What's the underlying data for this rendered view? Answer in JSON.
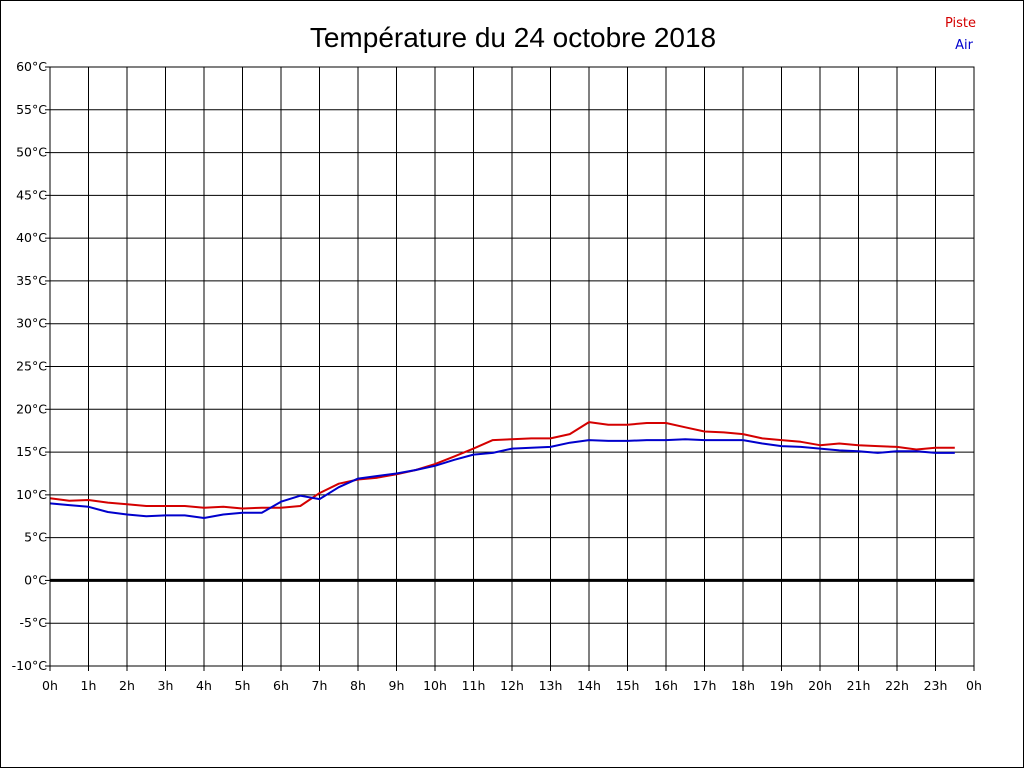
{
  "chart_data": {
    "type": "line",
    "title": "Température du 24 octobre 2018",
    "xlabel": "",
    "ylabel": "",
    "x_ticks": [
      "0h",
      "1h",
      "2h",
      "3h",
      "4h",
      "5h",
      "6h",
      "7h",
      "8h",
      "9h",
      "10h",
      "11h",
      "12h",
      "13h",
      "14h",
      "15h",
      "16h",
      "17h",
      "18h",
      "19h",
      "20h",
      "21h",
      "22h",
      "23h",
      "0h"
    ],
    "y_ticks": [
      "-10°C",
      "-5°C",
      "0°C",
      "5°C",
      "10°C",
      "15°C",
      "20°C",
      "25°C",
      "30°C",
      "35°C",
      "40°C",
      "45°C",
      "50°C",
      "55°C",
      "60°C"
    ],
    "xlim": [
      0,
      24
    ],
    "ylim": [
      -10,
      60
    ],
    "grid": true,
    "legend_position": "top-right",
    "series": [
      {
        "name": "Piste",
        "color": "#d40000",
        "x": [
          0,
          0.5,
          1,
          1.5,
          2,
          2.5,
          3,
          3.5,
          4,
          4.5,
          5,
          5.5,
          6,
          6.5,
          7,
          7.5,
          8,
          8.5,
          9,
          9.5,
          10,
          10.5,
          11,
          11.5,
          12,
          12.5,
          13,
          13.5,
          14,
          14.5,
          15,
          15.5,
          16,
          16.5,
          17,
          17.5,
          18,
          18.5,
          19,
          19.5,
          20,
          20.5,
          21,
          21.5,
          22,
          22.5,
          23,
          23.5
        ],
        "values": [
          9.6,
          9.3,
          9.4,
          9.1,
          8.9,
          8.7,
          8.7,
          8.7,
          8.5,
          8.6,
          8.4,
          8.5,
          8.5,
          8.7,
          10.2,
          11.3,
          11.8,
          12.0,
          12.4,
          12.9,
          13.6,
          14.5,
          15.4,
          16.4,
          16.5,
          16.6,
          16.6,
          17.1,
          18.5,
          18.2,
          18.2,
          18.4,
          18.4,
          17.9,
          17.4,
          17.3,
          17.1,
          16.6,
          16.4,
          16.2,
          15.8,
          16.0,
          15.8,
          15.7,
          15.6,
          15.3,
          15.5,
          15.5
        ]
      },
      {
        "name": "Air",
        "color": "#0000cc",
        "x": [
          0,
          0.5,
          1,
          1.5,
          2,
          2.5,
          3,
          3.5,
          4,
          4.5,
          5,
          5.5,
          6,
          6.5,
          7,
          7.5,
          8,
          8.5,
          9,
          9.5,
          10,
          10.5,
          11,
          11.5,
          12,
          12.5,
          13,
          13.5,
          14,
          14.5,
          15,
          15.5,
          16,
          16.5,
          17,
          17.5,
          18,
          18.5,
          19,
          19.5,
          20,
          20.5,
          21,
          21.5,
          22,
          22.5,
          23,
          23.5
        ],
        "values": [
          9.0,
          8.8,
          8.6,
          8.0,
          7.7,
          7.5,
          7.6,
          7.6,
          7.3,
          7.7,
          7.9,
          7.9,
          9.2,
          9.9,
          9.5,
          10.9,
          11.9,
          12.2,
          12.5,
          12.9,
          13.4,
          14.1,
          14.7,
          14.9,
          15.4,
          15.5,
          15.6,
          16.1,
          16.4,
          16.3,
          16.3,
          16.4,
          16.4,
          16.5,
          16.4,
          16.4,
          16.4,
          16.0,
          15.7,
          15.6,
          15.4,
          15.2,
          15.1,
          14.9,
          15.1,
          15.1,
          14.9,
          14.9
        ]
      }
    ],
    "baseline": {
      "y": 0,
      "color": "#000000"
    }
  }
}
